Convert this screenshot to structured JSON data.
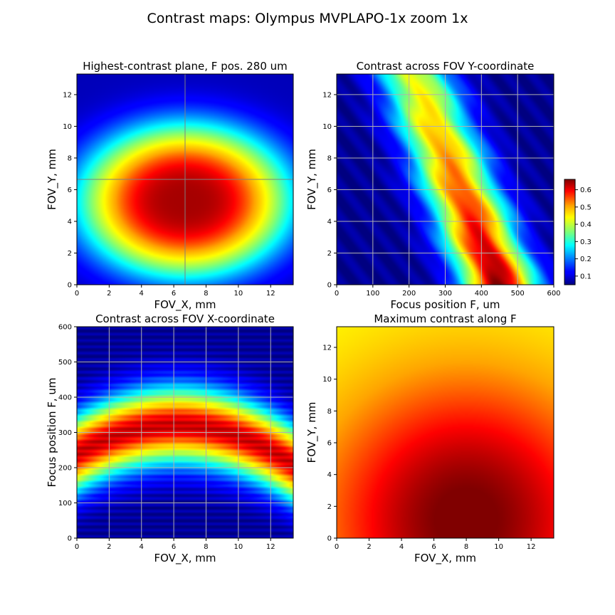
{
  "figure": {
    "suptitle": "Contrast maps: Olympus MVPLAPO-1x zoom 1x"
  },
  "chart_data": [
    {
      "type": "heatmap",
      "id": "p1",
      "title": "Highest-contrast plane, F pos. 280 um",
      "xlabel": "FOV_X, mm",
      "ylabel": "FOV_Y, mm",
      "xlim": [
        0,
        13.4
      ],
      "ylim": [
        0,
        13.3
      ],
      "xticks": [
        "0",
        "2",
        "4",
        "6",
        "8",
        "10",
        "12"
      ],
      "xtick_values": [
        0,
        2,
        4,
        6,
        8,
        10,
        12
      ],
      "yticks": [
        "0",
        "2",
        "4",
        "6",
        "8",
        "10",
        "12"
      ],
      "ytick_values": [
        0,
        2,
        4,
        6,
        8,
        10,
        12
      ],
      "grid": false,
      "crosshair": {
        "x": 6.7,
        "y": 6.65
      },
      "colormap": "jet",
      "value_model": {
        "kind": "ellipse",
        "cx": 6.7,
        "cy": 5.3,
        "sx": 7.6,
        "sy": 5.6,
        "peak": 0.64,
        "falloff": 0.6,
        "min": 0.08
      }
    },
    {
      "type": "heatmap",
      "id": "p2",
      "title": "Contrast across FOV Y-coordinate",
      "xlabel": "Focus position F, um",
      "ylabel": "FOV_Y, mm",
      "xlim": [
        0,
        600
      ],
      "ylim": [
        0,
        13.3
      ],
      "xticks": [
        "0",
        "100",
        "200",
        "300",
        "400",
        "500",
        "600"
      ],
      "xtick_values": [
        0,
        100,
        200,
        300,
        400,
        500,
        600
      ],
      "yticks": [
        "0",
        "2",
        "4",
        "6",
        "8",
        "10",
        "12"
      ],
      "ytick_values": [
        0,
        2,
        4,
        6,
        8,
        10,
        12
      ],
      "grid": true,
      "colormap": "jet",
      "value_model": {
        "kind": "band_y",
        "center_at_y0": 450,
        "center_slope": -18,
        "width": 150,
        "peak_at_y0": 0.66,
        "peak_at_ymax": 0.42,
        "min": 0.06
      }
    },
    {
      "type": "heatmap",
      "id": "p3",
      "title": "Contrast across FOV X-coordinate",
      "xlabel": "FOV_X, mm",
      "ylabel": "Focus position F, um",
      "xlim": [
        0,
        13.4
      ],
      "ylim": [
        0,
        600
      ],
      "xticks": [
        "0",
        "2",
        "4",
        "6",
        "8",
        "10",
        "12"
      ],
      "xtick_values": [
        0,
        2,
        4,
        6,
        8,
        10,
        12
      ],
      "yticks": [
        "0",
        "100",
        "200",
        "300",
        "400",
        "500",
        "600"
      ],
      "ytick_values": [
        0,
        100,
        200,
        300,
        400,
        500,
        600
      ],
      "grid": true,
      "colormap": "jet",
      "value_model": {
        "kind": "arch_x",
        "center_at_x0": 240,
        "center_at_mid": 320,
        "center_at_xmax": 210,
        "x_mid": 6.2,
        "width": 150,
        "peak": 0.62,
        "min": 0.06
      }
    },
    {
      "type": "heatmap",
      "id": "p4",
      "title": "Maximum contrast along F",
      "xlabel": "FOV_X, mm",
      "ylabel": "FOV_Y, mm",
      "xlim": [
        0,
        13.4
      ],
      "ylim": [
        0,
        13.3
      ],
      "xticks": [
        "0",
        "2",
        "4",
        "6",
        "8",
        "10",
        "12"
      ],
      "xtick_values": [
        0,
        2,
        4,
        6,
        8,
        10,
        12
      ],
      "yticks": [
        "0",
        "2",
        "4",
        "6",
        "8",
        "10",
        "12"
      ],
      "ytick_values": [
        0,
        2,
        4,
        6,
        8,
        10,
        12
      ],
      "grid": false,
      "colormap": "jet",
      "value_model": {
        "kind": "gradient",
        "hot_x": 8.0,
        "hot_y": 1.2,
        "peak": 0.67,
        "edge": 0.43
      }
    }
  ],
  "colorbar": {
    "colormap": "jet",
    "vmin": 0.05,
    "vmax": 0.66,
    "ticks": [
      "0.1",
      "0.2",
      "0.3",
      "0.4",
      "0.5",
      "0.6"
    ],
    "tick_values": [
      0.1,
      0.2,
      0.3,
      0.4,
      0.5,
      0.6
    ]
  }
}
